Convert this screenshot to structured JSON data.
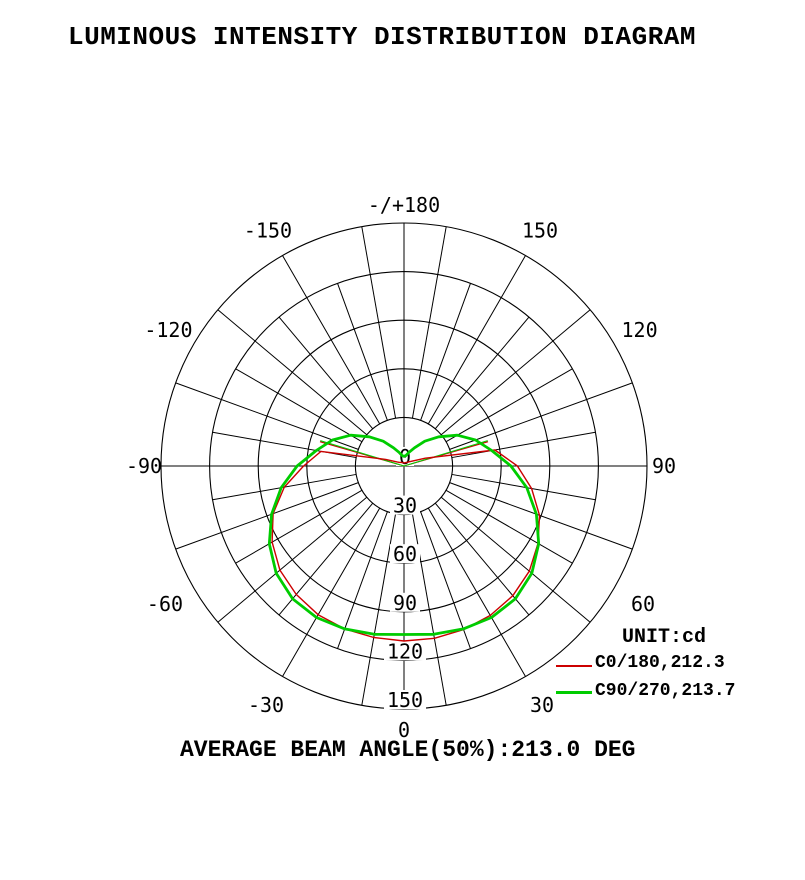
{
  "title": "LUMINOUS INTENSITY DISTRIBUTION DIAGRAM",
  "footer": "AVERAGE BEAM ANGLE(50%):213.0 DEG",
  "legend": {
    "unit_label": "UNIT:cd",
    "entries": [
      {
        "label": "C0/180,212.3",
        "color": "#cc0000"
      },
      {
        "label": "C90/270,213.7",
        "color": "#00cc00"
      }
    ]
  },
  "chart_data": {
    "type": "line",
    "subtype": "polar-intensity-distribution",
    "unit": "cd",
    "radial_max": 150,
    "radial_ticks": [
      0,
      30,
      60,
      90,
      120,
      150
    ],
    "grid": {
      "spoke_step_deg": 10,
      "minor_spokes_end_at_tick": 120,
      "major_spokes_every_deg": 20,
      "inner_blank_radius_tick": 30,
      "angle_zero_direction": "down",
      "grid_color": "#000000"
    },
    "angle_labels": [
      {
        "angle": -150,
        "label": "-150"
      },
      {
        "angle": -120,
        "label": "-120"
      },
      {
        "angle": -90,
        "label": "-90"
      },
      {
        "angle": -60,
        "label": "-60"
      },
      {
        "angle": -30,
        "label": "-30"
      },
      {
        "angle": 0,
        "label": "0"
      },
      {
        "angle": 30,
        "label": "30"
      },
      {
        "angle": 60,
        "label": "60"
      },
      {
        "angle": 90,
        "label": "90"
      },
      {
        "angle": 120,
        "label": "120"
      },
      {
        "angle": 150,
        "label": "150"
      },
      {
        "angle": 180,
        "label": "-/+180"
      }
    ],
    "series": [
      {
        "name": "C0/180",
        "beam_angle_deg": 212.3,
        "color": "#cc0000",
        "width": 1.4,
        "points": [
          [
            -180,
            2
          ],
          [
            -170,
            2
          ],
          [
            -160,
            2.2
          ],
          [
            -150,
            2.5
          ],
          [
            -140,
            3
          ],
          [
            -130,
            3.5
          ],
          [
            -120,
            5
          ],
          [
            -110,
            12
          ],
          [
            -100,
            52
          ],
          [
            -90,
            62
          ],
          [
            -80,
            75
          ],
          [
            -70,
            86
          ],
          [
            -60,
            94
          ],
          [
            -50,
            100
          ],
          [
            -40,
            103.5
          ],
          [
            -30,
            106
          ],
          [
            -20,
            107
          ],
          [
            -10,
            107.5
          ],
          [
            0,
            108
          ],
          [
            10,
            108
          ],
          [
            20,
            107.5
          ],
          [
            30,
            106.5
          ],
          [
            40,
            104.5
          ],
          [
            50,
            101
          ],
          [
            60,
            95.5
          ],
          [
            70,
            89
          ],
          [
            80,
            80
          ],
          [
            90,
            70
          ],
          [
            100,
            57
          ],
          [
            110,
            14
          ],
          [
            120,
            6
          ],
          [
            130,
            4
          ],
          [
            140,
            3
          ],
          [
            150,
            2.5
          ],
          [
            160,
            2.2
          ],
          [
            170,
            2
          ],
          [
            180,
            2
          ]
        ]
      },
      {
        "name": "C90/270",
        "beam_angle_deg": 213.7,
        "color": "#00cc00",
        "width": 2.8,
        "points": [
          [
            -180,
            6
          ],
          [
            -170,
            6.5
          ],
          [
            -160,
            9
          ],
          [
            -150,
            13
          ],
          [
            -140,
            20
          ],
          [
            -130,
            28
          ],
          [
            -120,
            38
          ],
          [
            -110,
            47
          ],
          [
            -100,
            55
          ],
          [
            -90,
            66
          ],
          [
            -80,
            77
          ],
          [
            -70,
            87
          ],
          [
            -60,
            96
          ],
          [
            -50,
            103
          ],
          [
            -40,
            107
          ],
          [
            -30,
            108
          ],
          [
            -20,
            107
          ],
          [
            -10,
            105.5
          ],
          [
            0,
            104
          ],
          [
            10,
            105.5
          ],
          [
            20,
            107
          ],
          [
            30,
            108
          ],
          [
            40,
            107
          ],
          [
            50,
            103
          ],
          [
            60,
            96
          ],
          [
            70,
            87
          ],
          [
            80,
            77
          ],
          [
            90,
            66
          ],
          [
            100,
            55
          ],
          [
            110,
            47
          ],
          [
            120,
            38
          ],
          [
            130,
            28
          ],
          [
            140,
            20
          ],
          [
            150,
            13
          ],
          [
            160,
            9
          ],
          [
            170,
            6.5
          ],
          [
            180,
            6
          ]
        ]
      }
    ],
    "beam_angle_markers": true
  }
}
